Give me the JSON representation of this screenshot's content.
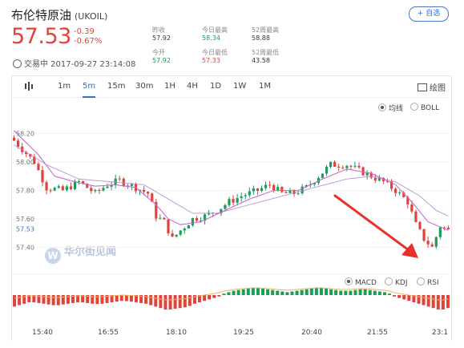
{
  "header": {
    "name": "布伦特原油",
    "code": "(UKOIL)",
    "price": "57.53",
    "change": "-0.39",
    "change_pct": "-0.67%",
    "status": "交易中 2017-09-27 23:14:08",
    "follow_label": "+ 自选",
    "stats": [
      {
        "label": "昨收",
        "value": "57.92",
        "color": "#333333"
      },
      {
        "label": "今开",
        "value": "57.92",
        "color": "#1a9e5a"
      },
      {
        "label": "今日最高",
        "value": "58.34",
        "color": "#1a9e5a"
      },
      {
        "label": "今日最低",
        "value": "57.33",
        "color": "#e0433b"
      },
      {
        "label": "52周最高",
        "value": "58.88",
        "color": "#333333"
      },
      {
        "label": "52周最低",
        "value": "43.58",
        "color": "#333333"
      }
    ]
  },
  "tabs": [
    "1m",
    "5m",
    "15m",
    "30m",
    "1H",
    "4H",
    "1D",
    "1W",
    "1M"
  ],
  "active_tab": "5m",
  "draw_label": "绘图",
  "main_indicators": [
    "均线",
    "BOLL"
  ],
  "main_active": "均线",
  "sub_indicators": [
    "MACD",
    "KDJ",
    "RSI"
  ],
  "sub_active": "MACD",
  "watermark": "华尔街见闻",
  "watermark_logo": "W",
  "colors": {
    "up": "#1a9e5a",
    "down": "#e0433b",
    "ma_fast": "#c46bd1",
    "ma_slow": "#b68ad0",
    "macd_line": "#f0b35a",
    "arrow": "#e8312a",
    "accent": "#2f6fd6"
  },
  "chart_data": {
    "type": "candlestick",
    "x_tick_labels": [
      "15:40",
      "16:55",
      "18:10",
      "19:25",
      "20:40",
      "21:55",
      "23:1"
    ],
    "y_tick_labels": [
      "58.20",
      "58.00",
      "57.80",
      "57.60",
      "57.40"
    ],
    "y_ticks": [
      58.2,
      58.0,
      57.8,
      57.6,
      57.4
    ],
    "ylim": [
      57.28,
      58.32
    ],
    "current_price_label": "57.53",
    "current_price": 57.53,
    "close_path": [
      [
        0,
        58.15
      ],
      [
        5,
        58.0
      ],
      [
        8,
        57.82
      ],
      [
        12,
        57.8
      ],
      [
        16,
        57.86
      ],
      [
        20,
        57.78
      ],
      [
        23,
        57.84
      ],
      [
        26,
        57.87
      ],
      [
        30,
        57.82
      ],
      [
        33,
        57.78
      ],
      [
        35,
        57.62
      ],
      [
        37,
        57.58
      ],
      [
        39,
        57.46
      ],
      [
        41,
        57.52
      ],
      [
        44,
        57.6
      ],
      [
        47,
        57.62
      ],
      [
        50,
        57.66
      ],
      [
        53,
        57.72
      ],
      [
        56,
        57.76
      ],
      [
        60,
        57.8
      ],
      [
        63,
        57.84
      ],
      [
        66,
        57.78
      ],
      [
        69,
        57.78
      ],
      [
        72,
        57.82
      ],
      [
        75,
        57.9
      ],
      [
        78,
        57.98
      ],
      [
        82,
        57.98
      ],
      [
        85,
        57.94
      ],
      [
        88,
        57.9
      ],
      [
        91,
        57.86
      ],
      [
        94,
        57.8
      ],
      [
        97,
        57.72
      ],
      [
        99,
        57.56
      ],
      [
        101,
        57.46
      ],
      [
        103,
        57.4
      ],
      [
        105,
        57.55
      ],
      [
        107,
        57.52
      ]
    ],
    "ma_fast": [
      [
        0,
        58.22
      ],
      [
        6,
        58.05
      ],
      [
        10,
        57.9
      ],
      [
        15,
        57.86
      ],
      [
        20,
        57.83
      ],
      [
        25,
        57.84
      ],
      [
        30,
        57.82
      ],
      [
        35,
        57.7
      ],
      [
        38,
        57.6
      ],
      [
        41,
        57.56
      ],
      [
        46,
        57.58
      ],
      [
        52,
        57.66
      ],
      [
        58,
        57.74
      ],
      [
        64,
        57.8
      ],
      [
        70,
        57.8
      ],
      [
        76,
        57.88
      ],
      [
        82,
        57.95
      ],
      [
        88,
        57.92
      ],
      [
        94,
        57.84
      ],
      [
        98,
        57.72
      ],
      [
        102,
        57.58
      ],
      [
        107,
        57.52
      ]
    ],
    "ma_slow": [
      [
        0,
        58.12
      ],
      [
        8,
        57.98
      ],
      [
        16,
        57.88
      ],
      [
        24,
        57.86
      ],
      [
        32,
        57.84
      ],
      [
        38,
        57.74
      ],
      [
        44,
        57.64
      ],
      [
        50,
        57.64
      ],
      [
        58,
        57.7
      ],
      [
        66,
        57.76
      ],
      [
        74,
        57.82
      ],
      [
        82,
        57.88
      ],
      [
        88,
        57.9
      ],
      [
        94,
        57.86
      ],
      [
        100,
        57.76
      ],
      [
        104,
        57.66
      ],
      [
        107,
        57.62
      ]
    ],
    "macd_hist": [
      -0.8,
      -0.7,
      -0.6,
      -0.5,
      -0.5,
      -0.55,
      -0.6,
      -0.65,
      -0.7,
      -0.7,
      -0.65,
      -0.6,
      -0.55,
      -0.5,
      -0.5,
      -0.55,
      -0.6,
      -0.62,
      -0.6,
      -0.55,
      -0.5,
      -0.45,
      -0.4,
      -0.42,
      -0.45,
      -0.5,
      -0.55,
      -0.6,
      -0.7,
      -0.8,
      -0.9,
      -1.0,
      -1.0,
      -0.95,
      -0.9,
      -0.85,
      -0.75,
      -0.6,
      -0.5,
      -0.4,
      -0.3,
      -0.2,
      -0.1,
      0.1,
      0.2,
      0.3,
      0.35,
      0.4,
      0.45,
      0.5,
      0.5,
      0.45,
      0.4,
      0.35,
      0.3,
      0.25,
      0.2,
      0.25,
      0.3,
      0.35,
      0.4,
      0.45,
      0.5,
      0.5,
      0.45,
      0.4,
      0.35,
      0.3,
      0.3,
      0.3,
      0.35,
      0.4,
      0.4,
      0.35,
      0.3,
      0.25,
      0.2,
      0.1,
      -0.1,
      -0.2,
      -0.3,
      -0.4,
      -0.5,
      -0.6,
      -0.7,
      -0.8,
      -0.9,
      -1.0,
      -1.0,
      -0.9
    ]
  }
}
